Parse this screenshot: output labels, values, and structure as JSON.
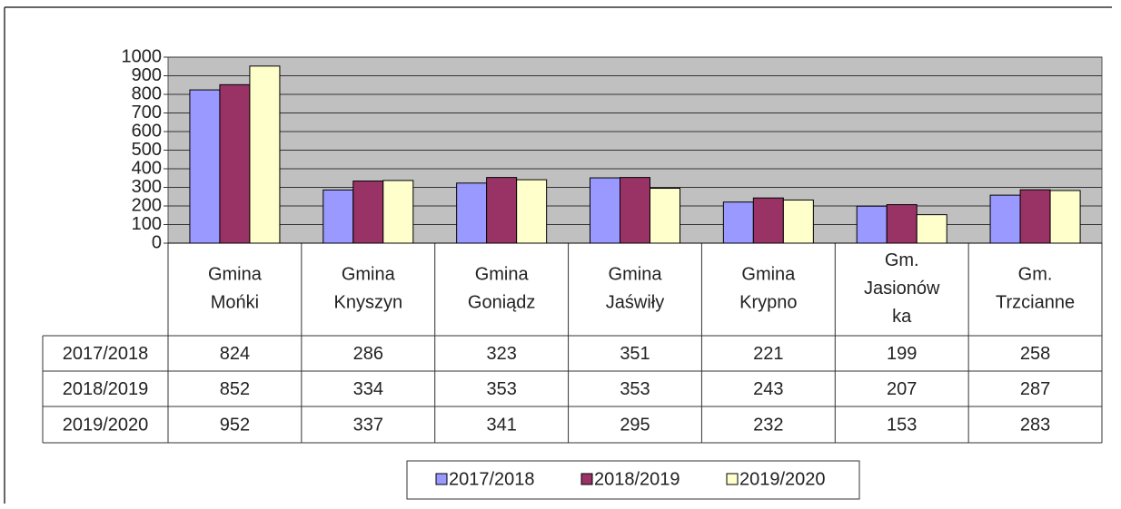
{
  "chart_data": {
    "type": "bar",
    "categories": [
      "Gmina\nMońki",
      "Gmina\nKnyszyn",
      "Gmina\nGoniądz",
      "Gmina\nJaświły",
      "Gmina\nKrypno",
      "Gm.\nJasionów\nka",
      "Gm.\nTrzcianne"
    ],
    "series": [
      {
        "name": "2017/2018",
        "color": "#9999ff",
        "values": [
          824,
          286,
          323,
          351,
          221,
          199,
          258
        ]
      },
      {
        "name": "2018/2019",
        "color": "#993366",
        "values": [
          852,
          334,
          353,
          353,
          243,
          207,
          287
        ]
      },
      {
        "name": "2019/2020",
        "color": "#ffffcc",
        "values": [
          952,
          337,
          341,
          295,
          232,
          153,
          283
        ]
      }
    ],
    "ylim": [
      0,
      1000
    ],
    "yticks": [
      0,
      100,
      200,
      300,
      400,
      500,
      600,
      700,
      800,
      900,
      1000
    ],
    "grid": true
  }
}
